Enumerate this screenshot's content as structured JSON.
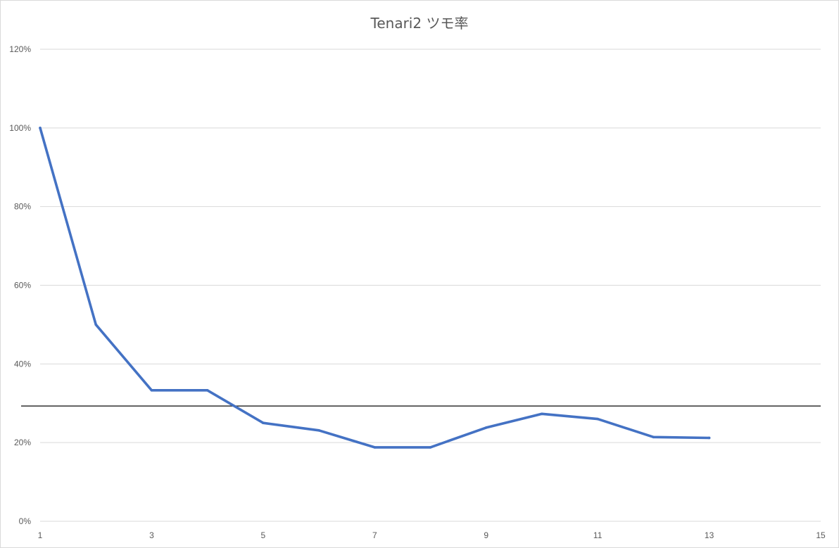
{
  "chart_data": {
    "type": "line",
    "title": "Tenari2 ツモ率",
    "xlabel": "",
    "ylabel": "",
    "xlim": [
      1,
      15
    ],
    "ylim": [
      0,
      1.2
    ],
    "x_ticks": [
      1,
      3,
      5,
      7,
      9,
      11,
      13,
      15
    ],
    "y_ticks": [
      0,
      0.2,
      0.4,
      0.6,
      0.8,
      1.0,
      1.2
    ],
    "y_tick_labels": [
      "0%",
      "20%",
      "40%",
      "60%",
      "80%",
      "100%",
      "120%"
    ],
    "grid": "horizontal",
    "legend": "none",
    "series": [
      {
        "x": [
          1,
          2,
          3,
          4,
          5,
          6,
          7,
          8,
          9,
          10,
          11,
          12,
          13
        ],
        "values": [
          1.0,
          0.5,
          0.333,
          0.333,
          0.25,
          0.231,
          0.188,
          0.188,
          0.238,
          0.273,
          0.26,
          0.214,
          0.212
        ],
        "color": "#4472c4"
      }
    ],
    "reference_line": {
      "value": 0.293,
      "color": "#404040"
    }
  }
}
